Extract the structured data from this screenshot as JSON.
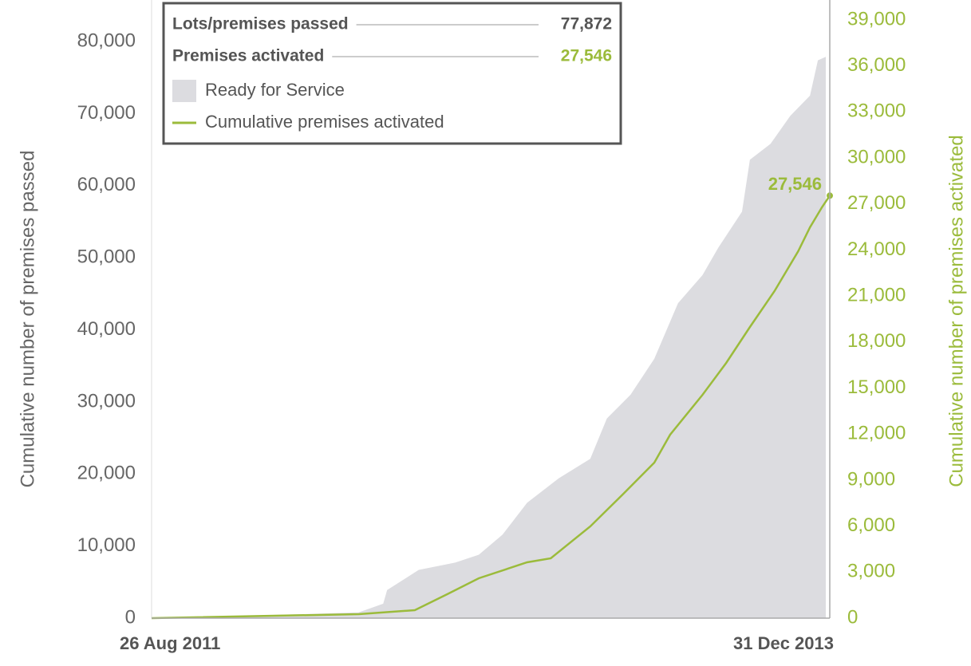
{
  "chart_data": {
    "type": "area-line",
    "y_label": "Cumulative number of premises passed",
    "y2_label": "Cumulative number of premises activated",
    "xlim": [
      "2011-08-26",
      "2013-12-31"
    ],
    "xticks": [
      {
        "value": "2011-08-26",
        "label": "26 Aug 2011"
      },
      {
        "value": "2013-12-31",
        "label": "31 Dec 2013"
      }
    ],
    "ylim": [
      0,
      83000
    ],
    "yticks": [
      0,
      {
        "value": 10000,
        "label": "10,000"
      },
      {
        "value": 20000,
        "label": "20,000"
      },
      {
        "value": 30000,
        "label": "30,000"
      },
      {
        "value": 40000,
        "label": "40,000"
      },
      {
        "value": 50000,
        "label": "50,000"
      },
      {
        "value": 60000,
        "label": "60,000"
      },
      {
        "value": 70000,
        "label": "70,000"
      },
      {
        "value": 80000,
        "label": "80,000"
      }
    ],
    "y2lim": [
      0,
      39000
    ],
    "y2ticks": [
      0,
      {
        "value": 3000,
        "label": "3,000"
      },
      {
        "value": 6000,
        "label": "6,000"
      },
      {
        "value": 9000,
        "label": "9,000"
      },
      {
        "value": 12000,
        "label": "12,000"
      },
      {
        "value": 15000,
        "label": "15,000"
      },
      {
        "value": 18000,
        "label": "18,000"
      },
      {
        "value": 21000,
        "label": "21,000"
      },
      {
        "value": 24000,
        "label": "24,000"
      },
      {
        "value": 27000,
        "label": "27,000"
      },
      {
        "value": 30000,
        "label": "30,000"
      },
      {
        "value": 33000,
        "label": "33,000"
      },
      {
        "value": 36000,
        "label": "36,000"
      },
      {
        "value": 39000,
        "label": "39,000"
      }
    ],
    "legend_summary": [
      {
        "label": "Lots/premises passed",
        "value": 77872,
        "value_label": "77,872",
        "color": "#555555"
      },
      {
        "label": "Premises activated",
        "value": 27546,
        "value_label": "27,546",
        "color": "#9bbb3b"
      }
    ],
    "series": [
      {
        "name": "Ready for Service",
        "kind": "area",
        "color": "#dcdce0",
        "x": [
          "2011-08-26",
          "2011-12-15",
          "2012-05-14",
          "2012-06-14",
          "2012-06-19",
          "2012-07-29",
          "2012-09-13",
          "2012-10-13",
          "2012-11-12",
          "2012-12-13",
          "2013-01-22",
          "2013-03-03",
          "2013-03-24",
          "2013-04-23",
          "2013-05-23",
          "2013-06-22",
          "2013-07-23",
          "2013-08-12",
          "2013-09-11",
          "2013-09-21",
          "2013-10-17",
          "2013-11-11",
          "2013-12-06",
          "2013-12-16",
          "2013-12-26"
        ],
        "values": [
          0,
          300,
          800,
          2000,
          3900,
          6700,
          7700,
          8800,
          11600,
          16000,
          19400,
          22100,
          27700,
          31000,
          36000,
          43700,
          47600,
          51400,
          56400,
          63600,
          65800,
          69700,
          72500,
          77400,
          77872
        ]
      },
      {
        "name": "Cumulative premises activated",
        "kind": "line",
        "axis": "y2",
        "color": "#9bbb3b",
        "x": [
          "2011-08-26",
          "2012-05-14",
          "2012-07-24",
          "2012-09-03",
          "2012-10-13",
          "2012-12-13",
          "2013-01-12",
          "2013-03-03",
          "2013-04-13",
          "2013-05-23",
          "2013-06-12",
          "2013-07-23",
          "2013-08-22",
          "2013-09-21",
          "2013-10-22",
          "2013-11-21",
          "2013-12-06",
          "2013-12-21",
          "2013-12-31"
        ],
        "values": [
          0,
          260,
          520,
          1560,
          2600,
          3640,
          3900,
          5980,
          8060,
          10140,
          11960,
          14560,
          16640,
          18980,
          21320,
          23920,
          25480,
          26780,
          27546
        ],
        "value_labels": [
          null,
          null,
          null,
          null,
          null,
          null,
          null,
          null,
          null,
          null,
          null,
          null,
          null,
          null,
          null,
          null,
          null,
          null,
          "27,546"
        ]
      }
    ]
  }
}
